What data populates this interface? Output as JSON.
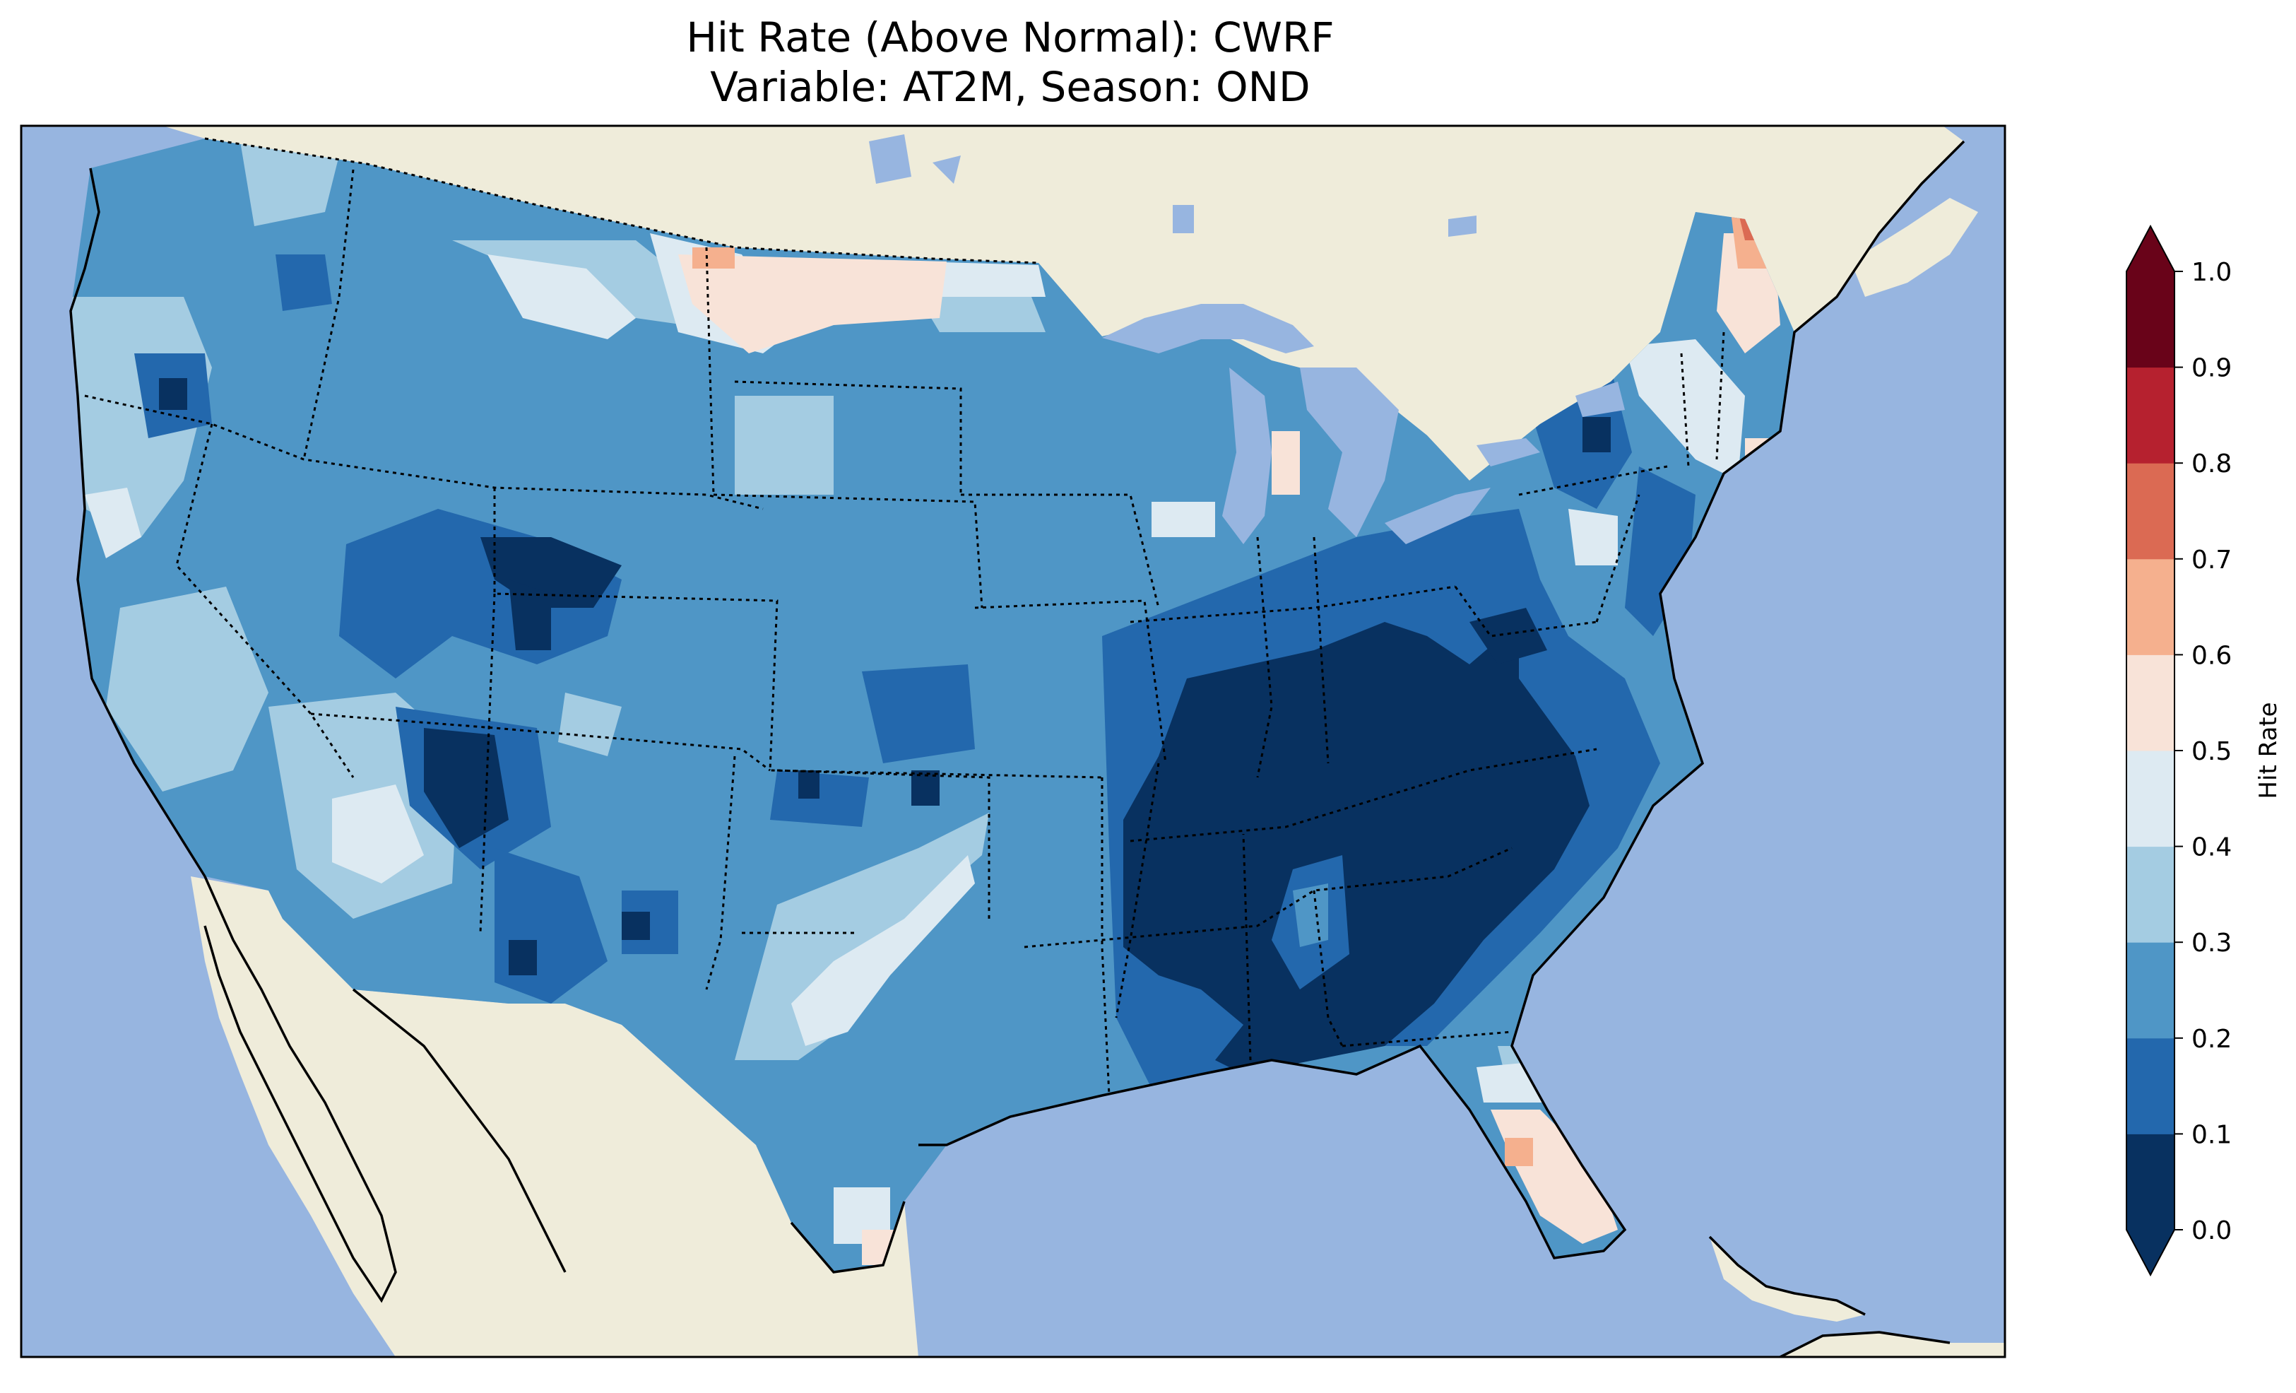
{
  "title": {
    "line1": "Hit Rate (Above Normal): CWRF",
    "line2": "Variable: AT2M, Season: OND"
  },
  "colorbar": {
    "label": "Hit Rate",
    "ticks": [
      "0.0",
      "0.1",
      "0.2",
      "0.3",
      "0.4",
      "0.5",
      "0.6",
      "0.7",
      "0.8",
      "0.9",
      "1.0"
    ],
    "colors": [
      "#083160",
      "#2368ad",
      "#4f96c6",
      "#a4cce2",
      "#ddeaf2",
      "#f8e3d8",
      "#f5b08e",
      "#db6a53",
      "#b6212f",
      "#690319"
    ],
    "extend_low_color": "#083160",
    "extend_high_color": "#690319"
  },
  "map": {
    "ocean_color": "#97b5e0",
    "land_color": "#efecda",
    "lake_color": "#97b5e0"
  }
}
